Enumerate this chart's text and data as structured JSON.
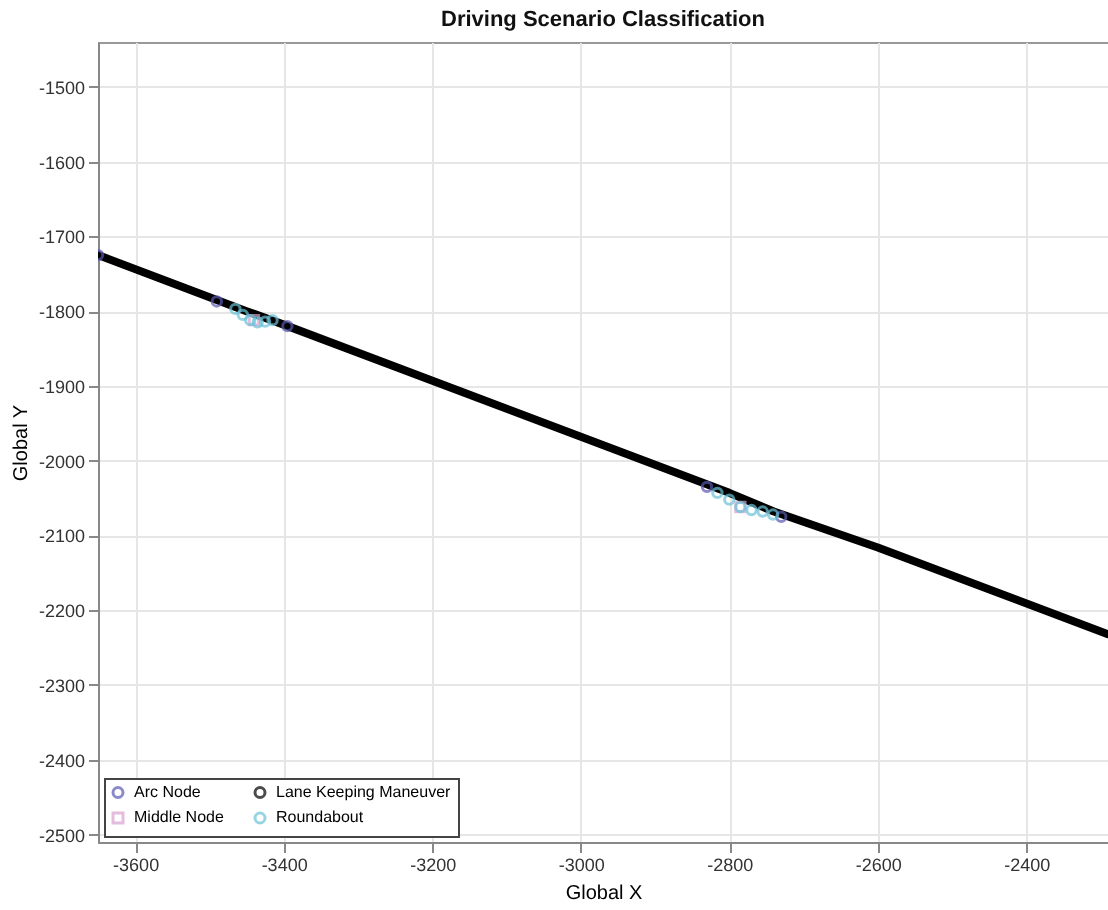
{
  "chart_data": {
    "type": "scatter",
    "title": "Driving Scenario Classification",
    "xlabel": "Global X",
    "ylabel": "Global Y",
    "xlim": [
      -3650,
      -2290
    ],
    "ylim": [
      -2510,
      -1440
    ],
    "xticks": [
      -3600,
      -3400,
      -3200,
      -3000,
      -2800,
      -2600,
      -2400
    ],
    "yticks": [
      -2500,
      -2400,
      -2300,
      -2200,
      -2100,
      -2000,
      -1900,
      -1800,
      -1700,
      -1600,
      -1500
    ],
    "grid": true,
    "legend": "bottom left",
    "series": [
      {
        "name": "Arc Node",
        "marker": "circle",
        "color": "#5a5ab4",
        "x": [
          -3650,
          -3490,
          -3395,
          -2830,
          -2730
        ],
        "values": [
          -1725,
          -1787,
          -1820,
          -2035,
          -2075
        ]
      },
      {
        "name": "Middle Node",
        "marker": "square",
        "color": "#d9a0d0",
        "x": [
          -3440,
          -2785
        ],
        "values": [
          -1812,
          -2062
        ]
      },
      {
        "name": "Lane Keeping Maneuver",
        "type": "line",
        "color": "#000000",
        "x": [
          -3650,
          -3450,
          -3400,
          -2800,
          -2740,
          -2600,
          -2290
        ],
        "values": [
          -1725,
          -1800,
          -1818,
          -2043,
          -2068,
          -2116,
          -2232
        ]
      },
      {
        "name": "Roundabout",
        "marker": "circle",
        "color": "#6bc3d8",
        "x": [
          -3465,
          -3455,
          -3445,
          -3435,
          -3425,
          -3415,
          -2816,
          -2800,
          -2785,
          -2770,
          -2755,
          -2741
        ],
        "values": [
          -1797,
          -1805,
          -1812,
          -1815,
          -1814,
          -1812,
          -2043,
          -2052,
          -2062,
          -2066,
          -2068,
          -2072
        ]
      }
    ]
  }
}
